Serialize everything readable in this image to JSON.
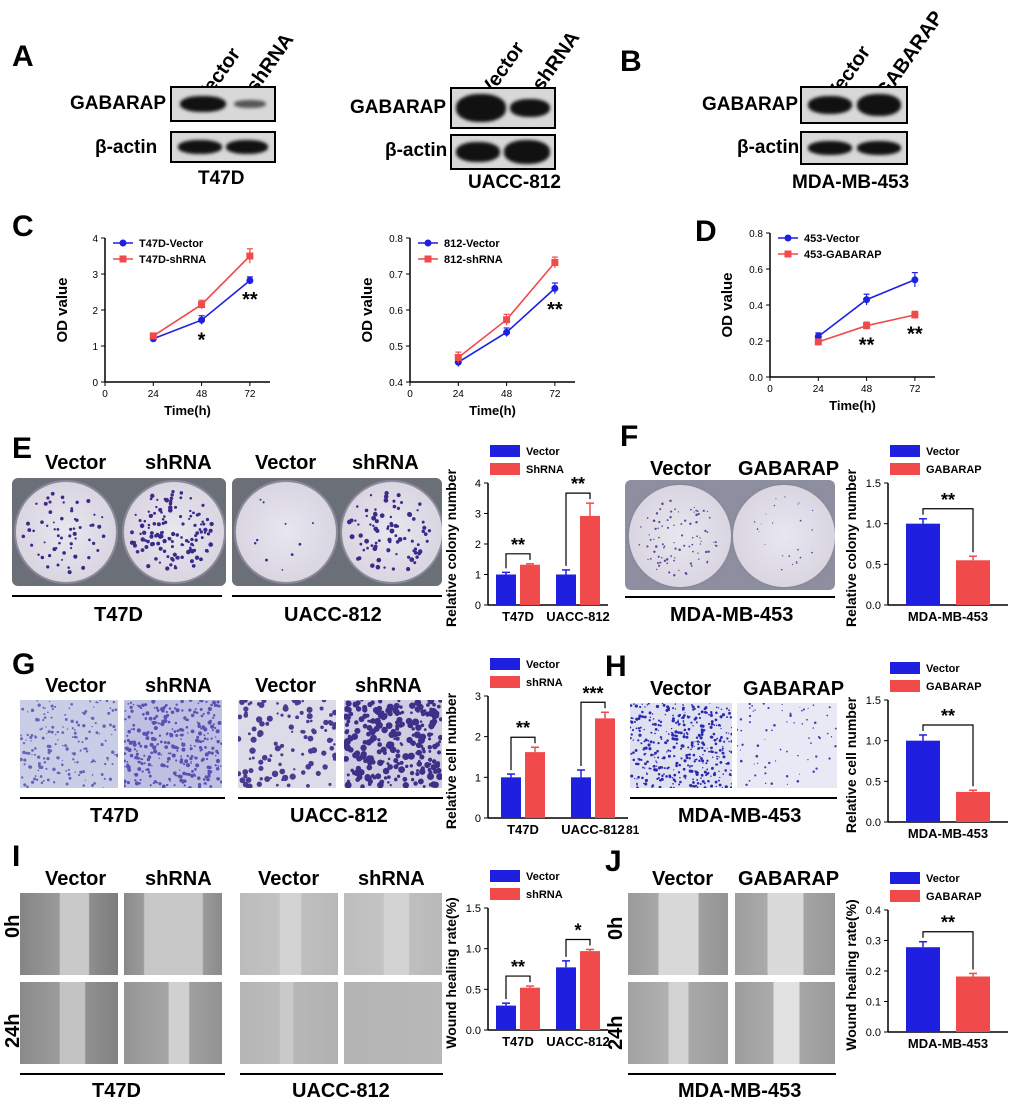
{
  "panels": {
    "A": "A",
    "B": "B",
    "C": "C",
    "D": "D",
    "E": "E",
    "F": "F",
    "G": "G",
    "H": "H",
    "I": "I",
    "J": "J"
  },
  "blots": {
    "a1": {
      "cols": [
        "Vector",
        "shRNA"
      ],
      "rows": [
        "GABARAP",
        "β-actin"
      ],
      "cell": "T47D"
    },
    "a2": {
      "cols": [
        "Vector",
        "shRNA"
      ],
      "rows": [
        "GABARAP",
        "β-actin"
      ],
      "cell": "UACC-812"
    },
    "b": {
      "cols": [
        "Vector",
        "GABARAP"
      ],
      "rows": [
        "GABARAP",
        "β-actin"
      ],
      "cell": "MDA-MB-453"
    }
  },
  "images": {
    "e_left": {
      "cols": [
        "Vector",
        "shRNA"
      ],
      "cell": "T47D"
    },
    "e_right": {
      "cols": [
        "Vector",
        "shRNA"
      ],
      "cell": "UACC-812"
    },
    "f": {
      "cols": [
        "Vector",
        "GABARAP"
      ],
      "cell": "MDA-MB-453"
    },
    "g_left": {
      "cols": [
        "Vector",
        "shRNA"
      ],
      "cell": "T47D"
    },
    "g_right": {
      "cols": [
        "Vector",
        "shRNA"
      ],
      "cell": "UACC-812"
    },
    "h": {
      "cols": [
        "Vector",
        "GABARAP"
      ],
      "cell": "MDA-MB-453"
    },
    "i_left": {
      "cols": [
        "Vector",
        "shRNA"
      ],
      "cell": "T47D"
    },
    "i_right": {
      "cols": [
        "Vector",
        "shRNA"
      ],
      "cell": "UACC-812"
    },
    "j": {
      "cols": [
        "Vector",
        "GABARAP"
      ],
      "cell": "MDA-MB-453"
    },
    "rows": [
      "0h",
      "24h"
    ]
  },
  "colors": {
    "blue": "#1f1fe0",
    "red": "#f04a4a"
  },
  "chart_data": [
    {
      "id": "C1",
      "type": "line",
      "x": [
        24,
        48,
        72
      ],
      "xticks": [
        0,
        24,
        48,
        72
      ],
      "xlim": [
        0,
        82
      ],
      "ylim": [
        0,
        4
      ],
      "yticks": [
        "0",
        "1",
        "2",
        "3",
        "4"
      ],
      "xlabel": "Time(h)",
      "ylabel": "OD value",
      "series": [
        {
          "name": "T47D-Vector",
          "values": [
            1.2,
            1.72,
            2.82
          ],
          "err": [
            0.08,
            0.12,
            0.1
          ],
          "color": "#1f1fe0",
          "marker": "circle"
        },
        {
          "name": "T47D-shRNA",
          "values": [
            1.28,
            2.15,
            3.5
          ],
          "err": [
            0.08,
            0.12,
            0.2
          ],
          "color": "#f04a4a",
          "marker": "square"
        }
      ],
      "annotations": [
        {
          "x": 48,
          "text": "*"
        },
        {
          "x": 72,
          "text": "**"
        }
      ]
    },
    {
      "id": "C2",
      "type": "line",
      "x": [
        24,
        48,
        72
      ],
      "xticks": [
        0,
        24,
        48,
        72
      ],
      "xlim": [
        0,
        82
      ],
      "ylim": [
        0.4,
        0.8
      ],
      "yticks": [
        "0.4",
        "0.5",
        "0.6",
        "0.7",
        "0.8"
      ],
      "xlabel": "Time(h)",
      "ylabel": "OD value",
      "series": [
        {
          "name": "812-Vector",
          "values": [
            0.455,
            0.538,
            0.66
          ],
          "err": [
            0.012,
            0.012,
            0.015
          ],
          "color": "#1f1fe0",
          "marker": "circle"
        },
        {
          "name": "812-shRNA",
          "values": [
            0.468,
            0.573,
            0.732
          ],
          "err": [
            0.015,
            0.015,
            0.015
          ],
          "color": "#f04a4a",
          "marker": "square"
        }
      ],
      "annotations": [
        {
          "x": 72,
          "text": "**"
        }
      ]
    },
    {
      "id": "D",
      "type": "line",
      "x": [
        24,
        48,
        72
      ],
      "xticks": [
        0,
        24,
        48,
        72
      ],
      "xlim": [
        0,
        82
      ],
      "ylim": [
        0,
        0.8
      ],
      "yticks": [
        "0.0",
        "0.2",
        "0.4",
        "0.6",
        "0.8"
      ],
      "xlabel": "Time(h)",
      "ylabel": "OD value",
      "series": [
        {
          "name": "453-Vector",
          "values": [
            0.225,
            0.43,
            0.54
          ],
          "err": [
            0.02,
            0.03,
            0.04
          ],
          "color": "#1f1fe0",
          "marker": "circle"
        },
        {
          "name": "453-GABARAP",
          "values": [
            0.195,
            0.285,
            0.345
          ],
          "err": [
            0.01,
            0.02,
            0.02
          ],
          "color": "#f04a4a",
          "marker": "square"
        }
      ],
      "annotations": [
        {
          "x": 48,
          "text": "**"
        },
        {
          "x": 72,
          "text": "**"
        }
      ]
    },
    {
      "id": "E",
      "type": "bar",
      "categories": [
        "T47D",
        "UACC-812"
      ],
      "ylim": [
        0,
        4
      ],
      "yticks": [
        "0",
        "1",
        "2",
        "3",
        "4"
      ],
      "ylabel": "Relative colony number",
      "series": [
        {
          "name": "Vector",
          "values": [
            1.0,
            1.0
          ],
          "err": [
            0.07,
            0.15
          ],
          "color": "#1f1fe0"
        },
        {
          "name": "ShRNA",
          "values": [
            1.32,
            2.92
          ],
          "err": [
            0.03,
            0.42
          ],
          "color": "#f04a4a"
        }
      ],
      "sig": [
        "**",
        "**"
      ]
    },
    {
      "id": "F",
      "type": "bar",
      "categories": [
        "MDA-MB-453"
      ],
      "ylim": [
        0,
        1.5
      ],
      "yticks": [
        "0.0",
        "0.5",
        "1.0",
        "1.5"
      ],
      "ylabel": "Relative colony number",
      "series": [
        {
          "name": "Vector",
          "values": [
            1.0
          ],
          "err": [
            0.06
          ],
          "color": "#1f1fe0"
        },
        {
          "name": "GABARAP",
          "values": [
            0.55
          ],
          "err": [
            0.05
          ],
          "color": "#f04a4a"
        }
      ],
      "sig": [
        "**"
      ]
    },
    {
      "id": "G",
      "type": "bar",
      "categories": [
        "T47D",
        "UACC-812"
      ],
      "ylim": [
        0,
        3
      ],
      "yticks": [
        "0",
        "1",
        "2",
        "3"
      ],
      "ylabel": "Relative cell number",
      "extra_text": "81",
      "series": [
        {
          "name": "Vector",
          "values": [
            1.0,
            1.0
          ],
          "err": [
            0.08,
            0.18
          ],
          "color": "#1f1fe0"
        },
        {
          "name": "shRNA",
          "values": [
            1.62,
            2.45
          ],
          "err": [
            0.12,
            0.15
          ],
          "color": "#f04a4a"
        }
      ],
      "sig": [
        "**",
        "***"
      ]
    },
    {
      "id": "H",
      "type": "bar",
      "categories": [
        "MDA-MB-453"
      ],
      "ylim": [
        0,
        1.5
      ],
      "yticks": [
        "0.0",
        "0.5",
        "1.0",
        "1.5"
      ],
      "ylabel": "Relative cell number",
      "series": [
        {
          "name": "Vector",
          "values": [
            1.0
          ],
          "err": [
            0.07
          ],
          "color": "#1f1fe0"
        },
        {
          "name": "GABARAP",
          "values": [
            0.37
          ],
          "err": [
            0.02
          ],
          "color": "#f04a4a"
        }
      ],
      "sig": [
        "**"
      ]
    },
    {
      "id": "I",
      "type": "bar",
      "categories": [
        "T47D",
        "UACC-812"
      ],
      "ylim": [
        0,
        1.5
      ],
      "yticks": [
        "0.0",
        "0.5",
        "1.0",
        "1.5"
      ],
      "ylabel": "Wound healing rate(%)",
      "series": [
        {
          "name": "Vector",
          "values": [
            0.3,
            0.77
          ],
          "err": [
            0.03,
            0.08
          ],
          "color": "#1f1fe0"
        },
        {
          "name": "shRNA",
          "values": [
            0.52,
            0.97
          ],
          "err": [
            0.02,
            0.02
          ],
          "color": "#f04a4a"
        }
      ],
      "sig": [
        "**",
        "*"
      ]
    },
    {
      "id": "J",
      "type": "bar",
      "categories": [
        "MDA-MB-453"
      ],
      "ylim": [
        0,
        0.4
      ],
      "yticks": [
        "0.0",
        "0.1",
        "0.2",
        "0.3",
        "0.4"
      ],
      "ylabel": "Wound healing rate(%)",
      "series": [
        {
          "name": "Vector",
          "values": [
            0.278
          ],
          "err": [
            0.018
          ],
          "color": "#1f1fe0"
        },
        {
          "name": "GABARAP",
          "values": [
            0.182
          ],
          "err": [
            0.01
          ],
          "color": "#f04a4a"
        }
      ],
      "sig": [
        "**"
      ]
    }
  ]
}
